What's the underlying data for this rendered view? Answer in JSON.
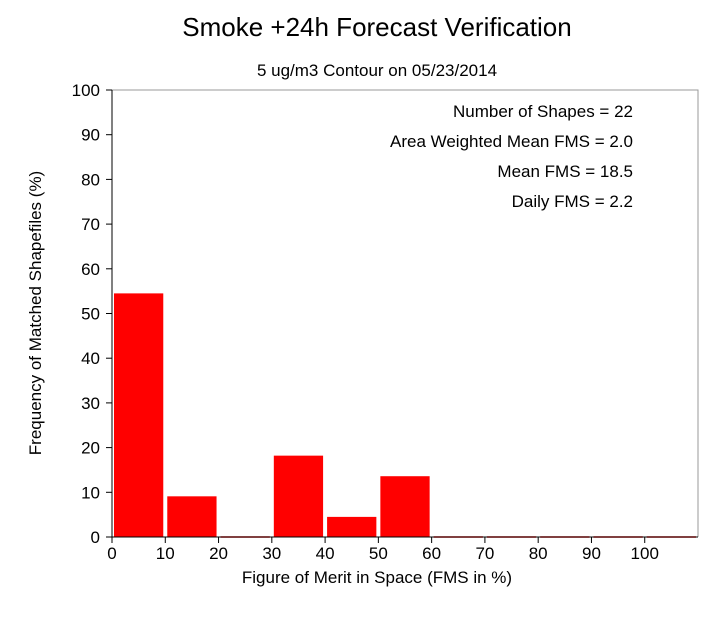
{
  "chart_data": {
    "type": "bar",
    "title": "Smoke +24h Forecast Verification",
    "subtitle": "5 ug/m3 Contour on 05/23/2014",
    "xlabel": "Figure of Merit in Space (FMS in %)",
    "ylabel": "Frequency of Matched Shapefiles (%)",
    "xlim": [
      0,
      110
    ],
    "ylim": [
      0,
      100
    ],
    "x_ticks": [
      "0",
      "10",
      "20",
      "30",
      "40",
      "50",
      "60",
      "70",
      "80",
      "90",
      "100"
    ],
    "y_ticks": [
      "0",
      "10",
      "20",
      "30",
      "40",
      "50",
      "60",
      "70",
      "80",
      "90",
      "100"
    ],
    "bins": [
      {
        "start": 0,
        "end": 10,
        "value": 54.5
      },
      {
        "start": 10,
        "end": 20,
        "value": 9.1
      },
      {
        "start": 20,
        "end": 30,
        "value": 0
      },
      {
        "start": 30,
        "end": 40,
        "value": 18.2
      },
      {
        "start": 40,
        "end": 50,
        "value": 4.5
      },
      {
        "start": 50,
        "end": 60,
        "value": 13.6
      },
      {
        "start": 60,
        "end": 70,
        "value": 0
      },
      {
        "start": 70,
        "end": 80,
        "value": 0
      },
      {
        "start": 80,
        "end": 90,
        "value": 0
      },
      {
        "start": 90,
        "end": 100,
        "value": 0
      },
      {
        "start": 100,
        "end": 110,
        "value": 0
      }
    ],
    "bar_color": "#ff0000",
    "grid": false,
    "annotations": [
      "Number of Shapes = 22",
      "Area Weighted Mean FMS = 2.0",
      "Mean FMS = 18.5",
      "Daily FMS = 2.2"
    ]
  }
}
